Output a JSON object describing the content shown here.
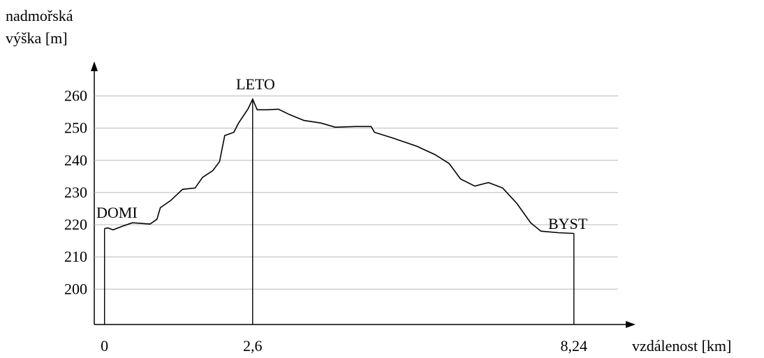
{
  "chart_data": {
    "type": "line",
    "ylabel": [
      "nadmořská",
      "výška [m]"
    ],
    "xlabel": "vzdálenost [km]",
    "xlim": [
      -0.18,
      9.26
    ],
    "ylim": [
      189,
      269
    ],
    "yticks": [
      200,
      210,
      220,
      230,
      240,
      250,
      260
    ],
    "xticks": [
      0,
      {
        "value": 2.6,
        "label": "2,6"
      },
      {
        "value": 8.24,
        "label": "8,24"
      }
    ],
    "grid": true,
    "color": "#000000",
    "annotations": [
      "DOMI",
      "LETO",
      "BYST"
    ],
    "x": [
      0,
      0.06,
      0.15,
      0.31,
      0.49,
      0.8,
      0.92,
      0.98,
      1.16,
      1.37,
      1.59,
      1.72,
      1.9,
      2.02,
      2.11,
      2.27,
      2.35,
      2.52,
      2.6,
      2.68,
      2.86,
      3.05,
      3.25,
      3.5,
      3.8,
      4.05,
      4.4,
      4.68,
      4.74,
      5.05,
      5.48,
      5.8,
      6.05,
      6.25,
      6.5,
      6.74,
      6.99,
      7.24,
      7.48,
      7.66,
      7.97,
      8.24
    ],
    "values": [
      218.8,
      219,
      218.4,
      219.5,
      220.6,
      220.2,
      221.7,
      225.3,
      227.5,
      231,
      231.4,
      234.7,
      236.8,
      239.6,
      247.7,
      248.7,
      251.5,
      256,
      259,
      255.7,
      255.7,
      255.9,
      254.2,
      252.4,
      251.6,
      250.3,
      250.5,
      250.5,
      248.7,
      247,
      244.4,
      241.8,
      239,
      234.2,
      232,
      233.1,
      231.4,
      226.6,
      220.6,
      218,
      217.5,
      217.3
    ]
  }
}
